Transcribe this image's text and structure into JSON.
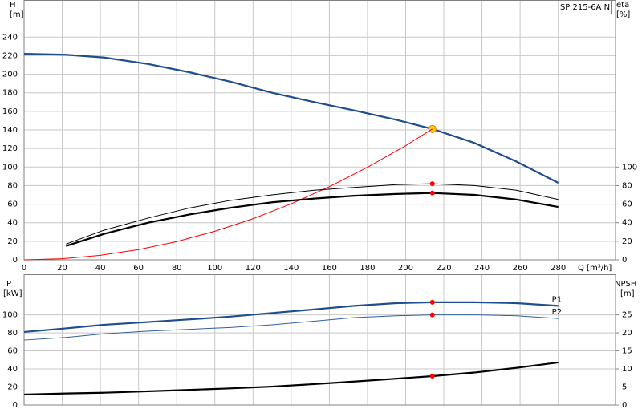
{
  "chart_data": [
    {
      "type": "line",
      "title": "SP 215-6A N",
      "xlabel": "Q [m³/h]",
      "ylabel": "H",
      "yunit": "[m]",
      "y2label": "eta",
      "y2unit": "[%]",
      "xlim": [
        0,
        310
      ],
      "xticks": [
        0,
        20,
        40,
        60,
        80,
        100,
        120,
        140,
        160,
        180,
        200,
        220,
        240,
        260,
        280
      ],
      "show_xtick_labels": true,
      "ylim": [
        0,
        280
      ],
      "yticks": [
        0,
        20,
        40,
        60,
        80,
        100,
        120,
        140,
        160,
        180,
        200,
        220,
        240
      ],
      "y2lim": [
        0,
        280
      ],
      "y2ticks": [
        0,
        20,
        40,
        60,
        80,
        100
      ],
      "grid": true,
      "series": [
        {
          "color": "#1f4e8c",
          "style": "thick",
          "x": [
            0,
            22,
            42,
            65,
            87,
            108,
            130,
            152,
            173,
            195,
            214,
            236,
            258,
            280
          ],
          "values": [
            222,
            221,
            218,
            211,
            202,
            192,
            180,
            170,
            161,
            151,
            141,
            126,
            106,
            83
          ],
          "marker_index": 10,
          "marker_color": "#ffd200"
        },
        {
          "color": "#ff0000",
          "style": "thin",
          "x": [
            0,
            20,
            40,
            60,
            80,
            100,
            120,
            140,
            160,
            180,
            200,
            214
          ],
          "values": [
            0,
            1.2,
            4.9,
            11,
            19.7,
            30.8,
            44.3,
            60.3,
            78.8,
            99.8,
            123,
            141
          ]
        },
        {
          "color": "#000000",
          "style": "thin",
          "axis": "y2",
          "x": [
            22,
            42,
            65,
            87,
            108,
            130,
            152,
            173,
            195,
            214,
            236,
            258,
            280
          ],
          "values": [
            17,
            32,
            45,
            56,
            64,
            70,
            75,
            78,
            81,
            82,
            80,
            75,
            65
          ],
          "marker_index": 9,
          "marker_color": "#ff0000"
        },
        {
          "color": "#000000",
          "style": "thick",
          "axis": "y2",
          "x": [
            22,
            42,
            65,
            87,
            108,
            130,
            152,
            173,
            195,
            214,
            236,
            258,
            280
          ],
          "values": [
            15,
            28,
            40,
            49,
            56,
            62,
            66,
            69,
            71,
            72,
            70,
            65,
            57
          ],
          "marker_index": 9,
          "marker_color": "#ff0000"
        }
      ]
    },
    {
      "type": "line",
      "ylabel": "P",
      "yunit": "[kW]",
      "y2label": "NPSH",
      "y2unit": "[m]",
      "xlim": [
        0,
        310
      ],
      "xticks": [
        0,
        20,
        40,
        60,
        80,
        100,
        120,
        140,
        160,
        180,
        200,
        220,
        240,
        260,
        280
      ],
      "show_xtick_labels": false,
      "ylim": [
        0,
        145
      ],
      "yticks": [
        0,
        20,
        40,
        60,
        80,
        100
      ],
      "y2lim": [
        0,
        36.25
      ],
      "y2ticks": [
        0,
        5,
        10,
        15,
        20,
        25
      ],
      "grid": true,
      "series": [
        {
          "name": "P1",
          "color": "#1f4e8c",
          "style": "thick",
          "x": [
            0,
            22,
            42,
            65,
            87,
            108,
            130,
            152,
            173,
            195,
            214,
            236,
            258,
            280
          ],
          "values": [
            81,
            85,
            89,
            92,
            95,
            98,
            102,
            106,
            110,
            113,
            114,
            114,
            113,
            110
          ],
          "marker_index": 10,
          "marker_color": "#ff0000"
        },
        {
          "name": "P2",
          "color": "#2f5fa0",
          "style": "thin",
          "x": [
            0,
            22,
            42,
            65,
            87,
            108,
            130,
            152,
            173,
            195,
            214,
            236,
            258,
            280
          ],
          "values": [
            72,
            75,
            79,
            82,
            84,
            86,
            89,
            93,
            97,
            99,
            100,
            100,
            99,
            96
          ],
          "marker_index": 10,
          "marker_color": "#ff0000"
        },
        {
          "color": "#000000",
          "style": "thick",
          "axis": "y2",
          "x": [
            0,
            22,
            42,
            65,
            87,
            108,
            130,
            152,
            173,
            195,
            214,
            236,
            258,
            280
          ],
          "values": [
            2.9,
            3.2,
            3.4,
            3.8,
            4.2,
            4.6,
            5.1,
            5.8,
            6.5,
            7.3,
            8.0,
            9.0,
            10.3,
            11.8
          ],
          "marker_index": 10,
          "marker_color": "#ff0000"
        }
      ]
    }
  ]
}
